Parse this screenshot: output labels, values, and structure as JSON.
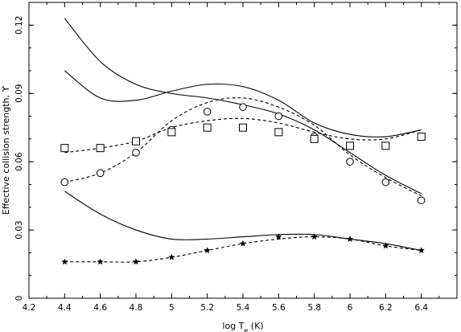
{
  "chart_data": {
    "type": "line",
    "title": "",
    "xlabel": "log T",
    "xlabel_sub": "e",
    "xlabel_suffix": " (K)",
    "ylabel": "Effective collision strength, ϒ",
    "xlim": [
      4.2,
      6.6
    ],
    "ylim": [
      0,
      0.13
    ],
    "xticks": [
      4.2,
      4.4,
      4.6,
      4.8,
      5,
      5.2,
      5.4,
      5.6,
      5.8,
      6,
      6.2,
      6.4
    ],
    "xtick_labels": [
      "4.2",
      "4.4",
      "4.6",
      "4.8",
      "5",
      "5.2",
      "5.4",
      "5.6",
      "5.8",
      "6",
      "6.2",
      "6.4"
    ],
    "yticks": [
      0,
      0.03,
      0.06,
      0.09,
      0.12
    ],
    "ytick_labels": [
      "0",
      "0.03",
      "0.06",
      "0.09",
      "0.12"
    ],
    "x": [
      4.4,
      4.6,
      4.8,
      5.0,
      5.2,
      5.4,
      5.6,
      5.8,
      6.0,
      6.2,
      6.4
    ],
    "grid": false,
    "series": [
      {
        "style": "solid",
        "marker": "none",
        "values": [
          0.123,
          0.104,
          0.094,
          0.09,
          0.088,
          0.085,
          0.081,
          0.074,
          0.064,
          0.054,
          0.046
        ]
      },
      {
        "style": "solid",
        "marker": "none",
        "values": [
          0.1,
          0.088,
          0.087,
          0.091,
          0.094,
          0.093,
          0.087,
          0.077,
          0.072,
          0.071,
          0.074
        ]
      },
      {
        "style": "solid",
        "marker": "none",
        "values": [
          0.047,
          0.037,
          0.03,
          0.026,
          0.026,
          0.027,
          0.028,
          0.028,
          0.026,
          0.024,
          0.021
        ]
      },
      {
        "style": "dashed",
        "marker": "circle",
        "values": [
          0.051,
          0.055,
          0.064,
          0.078,
          0.086,
          0.088,
          0.084,
          0.076,
          0.063,
          0.053,
          0.045
        ],
        "marker_values": [
          0.051,
          0.055,
          0.064,
          0.074,
          0.082,
          0.084,
          0.08,
          0.071,
          0.06,
          0.051,
          0.043
        ]
      },
      {
        "style": "dashed",
        "marker": "square",
        "values": [
          0.064,
          0.066,
          0.069,
          0.075,
          0.078,
          0.079,
          0.077,
          0.073,
          0.07,
          0.07,
          0.074
        ],
        "marker_values": [
          0.066,
          0.066,
          0.069,
          0.073,
          0.075,
          0.075,
          0.073,
          0.07,
          0.067,
          0.067,
          0.071
        ]
      },
      {
        "style": "dashed",
        "marker": "star",
        "values": [
          0.016,
          0.016,
          0.016,
          0.018,
          0.021,
          0.024,
          0.026,
          0.027,
          0.026,
          0.023,
          0.021
        ],
        "marker_values": [
          0.016,
          0.016,
          0.016,
          0.018,
          0.021,
          0.024,
          0.027,
          0.027,
          0.026,
          0.023,
          0.021
        ]
      }
    ]
  }
}
